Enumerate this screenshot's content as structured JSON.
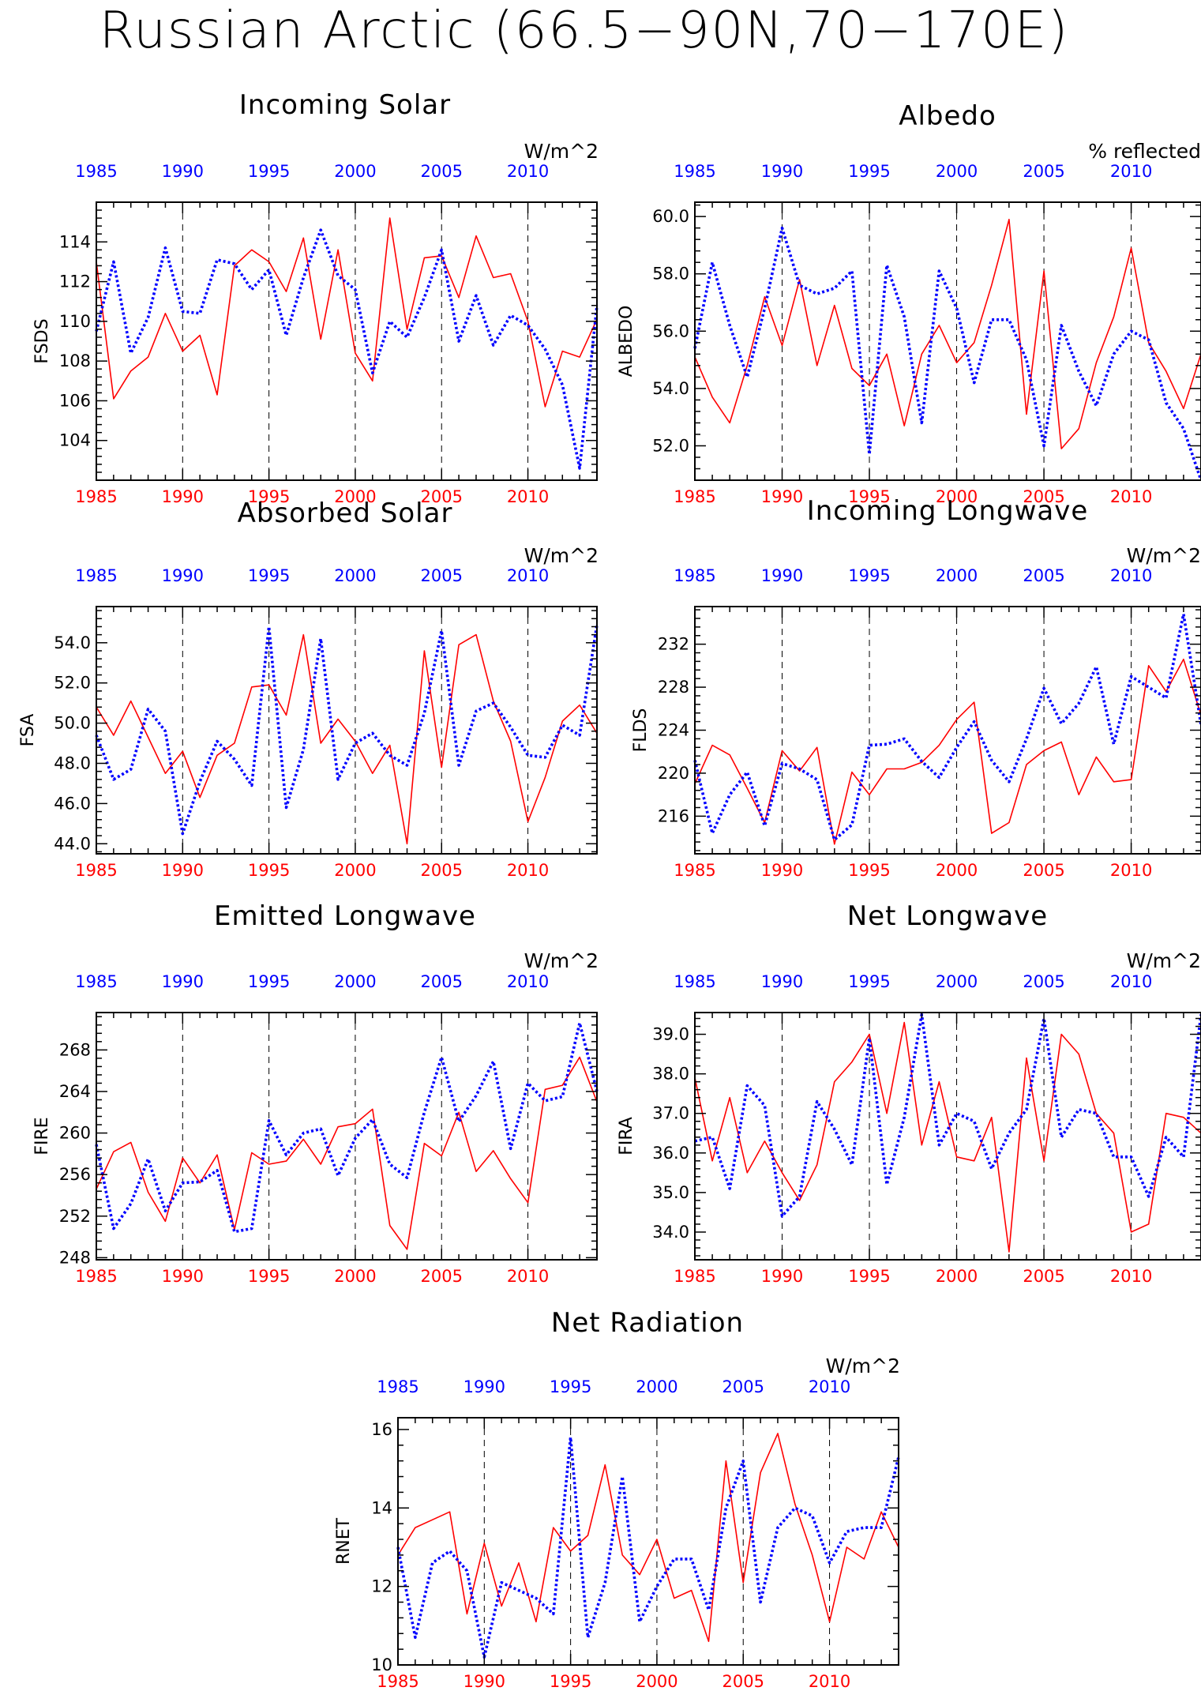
{
  "figure": {
    "title": "Russian Arctic (66.5−90N,70−170E)"
  },
  "colors": {
    "series_red": "#ff0000",
    "series_blue": "#0000ff",
    "axis": "#000000"
  },
  "chart_data": [
    {
      "type": "line",
      "title": "Incoming Solar",
      "units": "W/m^2",
      "ylabel": "FSDS",
      "ylim": [
        102,
        116
      ],
      "yticks": [
        104,
        106,
        108,
        110,
        112,
        114
      ],
      "ytick_labels": [
        "104",
        "106",
        "108",
        "110",
        "112",
        "114"
      ],
      "xlim": [
        1985,
        2014
      ],
      "xticks": [
        1985,
        1990,
        1995,
        2000,
        2005,
        2010
      ],
      "xtick_labels_bottom": [
        "1985",
        "1990",
        "1995",
        "2000",
        "2005",
        "2010"
      ],
      "xtick_labels_top": [
        "1985",
        "1990",
        "1995",
        "2000",
        "2005",
        "2010"
      ],
      "grid": "dashed vertical lines at 1990, 1995, 2000, 2005, 2010",
      "x": [
        1985,
        1986,
        1987,
        1988,
        1989,
        1990,
        1991,
        1992,
        1993,
        1994,
        1995,
        1996,
        1997,
        1998,
        1999,
        2000,
        2001,
        2002,
        2003,
        2004,
        2005,
        2006,
        2007,
        2008,
        2009,
        2010,
        2011,
        2012,
        2013,
        2014
      ],
      "series": [
        {
          "color": "red",
          "style": "solid",
          "values": [
            113.0,
            106.1,
            107.5,
            108.2,
            110.4,
            108.5,
            109.3,
            106.3,
            112.8,
            113.6,
            113.0,
            111.5,
            114.2,
            109.1,
            113.6,
            108.4,
            107.0,
            115.2,
            109.6,
            113.2,
            113.3,
            111.2,
            114.3,
            112.2,
            112.4,
            110.0,
            105.7,
            108.5,
            108.2,
            110.1
          ]
        },
        {
          "color": "blue",
          "style": "dotted",
          "values": [
            109.5,
            113.0,
            108.4,
            110.2,
            113.7,
            110.5,
            110.4,
            113.1,
            112.9,
            111.6,
            112.6,
            109.3,
            112.2,
            114.6,
            112.3,
            111.6,
            107.4,
            110.0,
            109.2,
            111.2,
            113.6,
            109.0,
            111.3,
            108.8,
            110.3,
            109.8,
            108.6,
            106.8,
            102.6,
            110.8
          ]
        }
      ]
    },
    {
      "type": "line",
      "title": "Albedo",
      "units": "% reflected",
      "ylabel": "ALBEDO",
      "ylim": [
        50.8,
        60.5
      ],
      "yticks": [
        52,
        54,
        56,
        58,
        60
      ],
      "ytick_labels": [
        "52.0",
        "54.0",
        "56.0",
        "58.0",
        "60.0"
      ],
      "xlim": [
        1985,
        2014
      ],
      "xticks": [
        1985,
        1990,
        1995,
        2000,
        2005,
        2010
      ],
      "xtick_labels_bottom": [
        "1985",
        "1990",
        "1995",
        "2000",
        "2005",
        "2010"
      ],
      "xtick_labels_top": [
        "1985",
        "1990",
        "1995",
        "2000",
        "2005",
        "2010"
      ],
      "grid": "dashed vertical lines at 1990, 1995, 2000, 2005, 2010",
      "x": [
        1985,
        1986,
        1987,
        1988,
        1989,
        1990,
        1991,
        1992,
        1993,
        1994,
        1995,
        1996,
        1997,
        1998,
        1999,
        2000,
        2001,
        2002,
        2003,
        2004,
        2005,
        2006,
        2007,
        2008,
        2009,
        2010,
        2011,
        2012,
        2013,
        2014
      ],
      "series": [
        {
          "color": "red",
          "style": "solid",
          "values": [
            55.1,
            53.7,
            52.8,
            54.8,
            57.2,
            55.5,
            57.8,
            54.8,
            56.9,
            54.7,
            54.1,
            55.2,
            52.7,
            55.2,
            56.2,
            54.9,
            55.6,
            57.6,
            59.9,
            53.1,
            58.1,
            51.9,
            52.6,
            54.9,
            56.5,
            58.9,
            55.6,
            54.6,
            53.3,
            55.2
          ]
        },
        {
          "color": "blue",
          "style": "dotted",
          "values": [
            55.4,
            58.4,
            56.2,
            54.4,
            56.8,
            59.6,
            57.6,
            57.3,
            57.5,
            58.1,
            51.7,
            58.3,
            56.5,
            52.8,
            58.1,
            56.8,
            54.2,
            56.4,
            56.4,
            55.0,
            52.0,
            56.2,
            54.6,
            53.4,
            55.2,
            56.0,
            55.7,
            53.5,
            52.6,
            50.8
          ]
        }
      ]
    },
    {
      "type": "line",
      "title": "Absorbed Solar",
      "units": "W/m^2",
      "ylabel": "FSA",
      "ylim": [
        43.5,
        55.8
      ],
      "yticks": [
        44,
        46,
        48,
        50,
        52,
        54
      ],
      "ytick_labels": [
        "44.0",
        "46.0",
        "48.0",
        "50.0",
        "52.0",
        "54.0"
      ],
      "xlim": [
        1985,
        2014
      ],
      "xticks": [
        1985,
        1990,
        1995,
        2000,
        2005,
        2010
      ],
      "xtick_labels_bottom": [
        "1985",
        "1990",
        "1995",
        "2000",
        "2005",
        "2010"
      ],
      "xtick_labels_top": [
        "1985",
        "1990",
        "1995",
        "2000",
        "2005",
        "2010"
      ],
      "grid": "dashed vertical lines at 1990, 1995, 2000, 2005, 2010",
      "x": [
        1985,
        1986,
        1987,
        1988,
        1989,
        1990,
        1991,
        1992,
        1993,
        1994,
        1995,
        1996,
        1997,
        1998,
        1999,
        2000,
        2001,
        2002,
        2003,
        2004,
        2005,
        2006,
        2007,
        2008,
        2009,
        2010,
        2011,
        2012,
        2013,
        2014
      ],
      "series": [
        {
          "color": "red",
          "style": "solid",
          "values": [
            50.8,
            49.4,
            51.1,
            49.3,
            47.5,
            48.6,
            46.3,
            48.4,
            49.0,
            51.8,
            51.9,
            50.4,
            54.4,
            49.0,
            50.2,
            49.1,
            47.5,
            48.9,
            44.0,
            53.6,
            47.8,
            53.9,
            54.4,
            51.1,
            49.1,
            45.1,
            47.3,
            50.1,
            50.9,
            49.5
          ]
        },
        {
          "color": "blue",
          "style": "dotted",
          "values": [
            49.4,
            47.2,
            47.7,
            50.7,
            49.6,
            44.5,
            47.1,
            49.1,
            48.2,
            46.9,
            54.8,
            45.8,
            48.7,
            54.2,
            47.2,
            49.0,
            49.5,
            48.4,
            47.9,
            50.5,
            54.6,
            47.9,
            50.6,
            51.0,
            49.8,
            48.4,
            48.3,
            49.9,
            49.4,
            54.9
          ]
        }
      ]
    },
    {
      "type": "line",
      "title": "Incoming Longwave",
      "units": "W/m^2",
      "ylabel": "FLDS",
      "ylim": [
        212.5,
        235.5
      ],
      "yticks": [
        216,
        220,
        224,
        228,
        232
      ],
      "ytick_labels": [
        "216",
        "220",
        "224",
        "228",
        "232"
      ],
      "xlim": [
        1985,
        2014
      ],
      "xticks": [
        1985,
        1990,
        1995,
        2000,
        2005,
        2010
      ],
      "xtick_labels_bottom": [
        "1985",
        "1990",
        "1995",
        "2000",
        "2005",
        "2010"
      ],
      "xtick_labels_top": [
        "1985",
        "1990",
        "1995",
        "2000",
        "2005",
        "2010"
      ],
      "grid": "dashed vertical lines at 1990, 1995, 2000, 2005, 2010",
      "x": [
        1985,
        1986,
        1987,
        1988,
        1989,
        1990,
        1991,
        1992,
        1993,
        1994,
        1995,
        1996,
        1997,
        1998,
        1999,
        2000,
        2001,
        2002,
        2003,
        2004,
        2005,
        2006,
        2007,
        2008,
        2009,
        2010,
        2011,
        2012,
        2013,
        2014
      ],
      "series": [
        {
          "color": "red",
          "style": "solid",
          "values": [
            219.0,
            222.6,
            221.7,
            218.6,
            215.4,
            222.1,
            220.2,
            222.4,
            213.4,
            220.1,
            218.0,
            220.4,
            220.4,
            221.0,
            222.6,
            225.0,
            226.6,
            214.4,
            215.4,
            220.8,
            222.1,
            222.9,
            218.0,
            221.5,
            219.2,
            219.4,
            230.0,
            227.6,
            230.6,
            225.4
          ]
        },
        {
          "color": "blue",
          "style": "dotted",
          "values": [
            221.2,
            214.4,
            218.0,
            220.1,
            215.1,
            220.9,
            220.4,
            219.4,
            213.8,
            215.2,
            222.6,
            222.7,
            223.2,
            221.1,
            219.6,
            222.4,
            224.8,
            221.2,
            219.2,
            223.2,
            227.9,
            224.6,
            226.5,
            229.9,
            222.7,
            229.0,
            228.0,
            227.0,
            234.8,
            224.5
          ]
        }
      ]
    },
    {
      "type": "line",
      "title": "Emitted Longwave",
      "units": "W/m^2",
      "ylabel": "FIRE",
      "ylim": [
        247.8,
        271.6
      ],
      "yticks": [
        248,
        252,
        256,
        260,
        264,
        268
      ],
      "ytick_labels": [
        "248",
        "252",
        "256",
        "260",
        "264",
        "268"
      ],
      "xlim": [
        1985,
        2014
      ],
      "xticks": [
        1985,
        1990,
        1995,
        2000,
        2005,
        2010
      ],
      "xtick_labels_bottom": [
        "1985",
        "1990",
        "1995",
        "2000",
        "2005",
        "2010"
      ],
      "xtick_labels_top": [
        "1985",
        "1990",
        "1995",
        "2000",
        "2005",
        "2010"
      ],
      "grid": "dashed vertical lines at 1990, 1995, 2000, 2005, 2010",
      "x": [
        1985,
        1986,
        1987,
        1988,
        1989,
        1990,
        1991,
        1992,
        1993,
        1994,
        1995,
        1996,
        1997,
        1998,
        1999,
        2000,
        2001,
        2002,
        2003,
        2004,
        2005,
        2006,
        2007,
        2008,
        2009,
        2010,
        2011,
        2012,
        2013,
        2014
      ],
      "series": [
        {
          "color": "red",
          "style": "solid",
          "values": [
            254.6,
            258.2,
            259.1,
            254.3,
            251.5,
            257.6,
            255.2,
            257.9,
            250.7,
            258.1,
            257.0,
            257.3,
            259.4,
            257.0,
            260.6,
            260.9,
            262.3,
            251.1,
            248.8,
            259.0,
            257.8,
            262.0,
            256.3,
            258.3,
            255.6,
            253.3,
            264.2,
            264.6,
            267.3,
            263.0
          ]
        },
        {
          "color": "blue",
          "style": "dotted",
          "values": [
            258.9,
            250.8,
            253.2,
            257.5,
            252.5,
            255.2,
            255.3,
            256.4,
            250.5,
            250.8,
            261.2,
            257.9,
            260.0,
            260.4,
            255.9,
            259.5,
            261.3,
            257.0,
            255.7,
            262.0,
            267.3,
            261.1,
            263.6,
            266.9,
            258.5,
            264.8,
            263.1,
            263.5,
            270.6,
            264.0
          ]
        }
      ]
    },
    {
      "type": "line",
      "title": "Net Longwave",
      "units": "W/m^2",
      "ylabel": "FIRA",
      "ylim": [
        33.3,
        39.55
      ],
      "yticks": [
        34,
        35,
        36,
        37,
        38,
        39
      ],
      "ytick_labels": [
        "34.0",
        "35.0",
        "36.0",
        "37.0",
        "38.0",
        "39.0"
      ],
      "xlim": [
        1985,
        2014
      ],
      "xticks": [
        1985,
        1990,
        1995,
        2000,
        2005,
        2010
      ],
      "xtick_labels_bottom": [
        "1985",
        "1990",
        "1995",
        "2000",
        "2005",
        "2010"
      ],
      "xtick_labels_top": [
        "1985",
        "1990",
        "1995",
        "2000",
        "2005",
        "2010"
      ],
      "grid": "dashed vertical lines at 1990, 1995, 2000, 2005, 2010",
      "x": [
        1985,
        1986,
        1987,
        1988,
        1989,
        1990,
        1991,
        1992,
        1993,
        1994,
        1995,
        1996,
        1997,
        1998,
        1999,
        2000,
        2001,
        2002,
        2003,
        2004,
        2005,
        2006,
        2007,
        2008,
        2009,
        2010,
        2011,
        2012,
        2013,
        2014
      ],
      "series": [
        {
          "color": "red",
          "style": "solid",
          "values": [
            37.9,
            35.8,
            37.4,
            35.5,
            36.3,
            35.5,
            34.8,
            35.7,
            37.8,
            38.3,
            39.0,
            37.0,
            39.3,
            36.2,
            37.8,
            35.9,
            35.8,
            36.9,
            33.5,
            38.4,
            35.8,
            39.0,
            38.5,
            37.0,
            36.5,
            34.0,
            34.2,
            37.0,
            36.9,
            36.5
          ]
        },
        {
          "color": "blue",
          "style": "dotted",
          "values": [
            36.3,
            36.4,
            35.1,
            37.7,
            37.2,
            34.4,
            34.9,
            37.3,
            36.6,
            35.7,
            38.9,
            35.2,
            36.9,
            39.5,
            36.2,
            37.0,
            36.8,
            35.6,
            36.5,
            37.1,
            39.4,
            36.4,
            37.1,
            37.0,
            35.9,
            35.9,
            34.9,
            36.4,
            35.9,
            39.5
          ]
        }
      ]
    },
    {
      "type": "line",
      "title": "Net Radiation",
      "units": "W/m^2",
      "ylabel": "RNET",
      "ylim": [
        10,
        16.3
      ],
      "yticks": [
        10,
        12,
        14,
        16
      ],
      "ytick_labels": [
        "10",
        "12",
        "14",
        "16"
      ],
      "xlim": [
        1985,
        2014
      ],
      "xticks": [
        1985,
        1990,
        1995,
        2000,
        2005,
        2010
      ],
      "xtick_labels_bottom": [
        "1985",
        "1990",
        "1995",
        "2000",
        "2005",
        "2010"
      ],
      "xtick_labels_top": [
        "1985",
        "1990",
        "1995",
        "2000",
        "2005",
        "2010"
      ],
      "grid": "dashed vertical lines at 1990, 1995, 2000, 2005, 2010",
      "x": [
        1985,
        1986,
        1987,
        1988,
        1989,
        1990,
        1991,
        1992,
        1993,
        1994,
        1995,
        1996,
        1997,
        1998,
        1999,
        2000,
        2001,
        2002,
        2003,
        2004,
        2005,
        2006,
        2007,
        2008,
        2009,
        2010,
        2011,
        2012,
        2013,
        2014
      ],
      "series": [
        {
          "color": "red",
          "style": "solid",
          "values": [
            12.8,
            13.5,
            13.7,
            13.9,
            11.3,
            13.1,
            11.5,
            12.6,
            11.1,
            13.5,
            12.9,
            13.3,
            15.1,
            12.8,
            12.3,
            13.2,
            11.7,
            11.9,
            10.6,
            15.2,
            12.1,
            14.9,
            15.9,
            14.1,
            12.8,
            11.1,
            13.0,
            12.7,
            13.9,
            13.0
          ]
        },
        {
          "color": "blue",
          "style": "dotted",
          "values": [
            13.0,
            10.7,
            12.6,
            12.9,
            12.4,
            10.2,
            12.1,
            11.9,
            11.7,
            11.3,
            15.8,
            10.7,
            12.1,
            14.8,
            11.1,
            12.0,
            12.7,
            12.7,
            11.4,
            14.0,
            15.2,
            11.6,
            13.5,
            14.0,
            13.8,
            12.6,
            13.4,
            13.5,
            13.5,
            15.3
          ]
        }
      ]
    }
  ]
}
